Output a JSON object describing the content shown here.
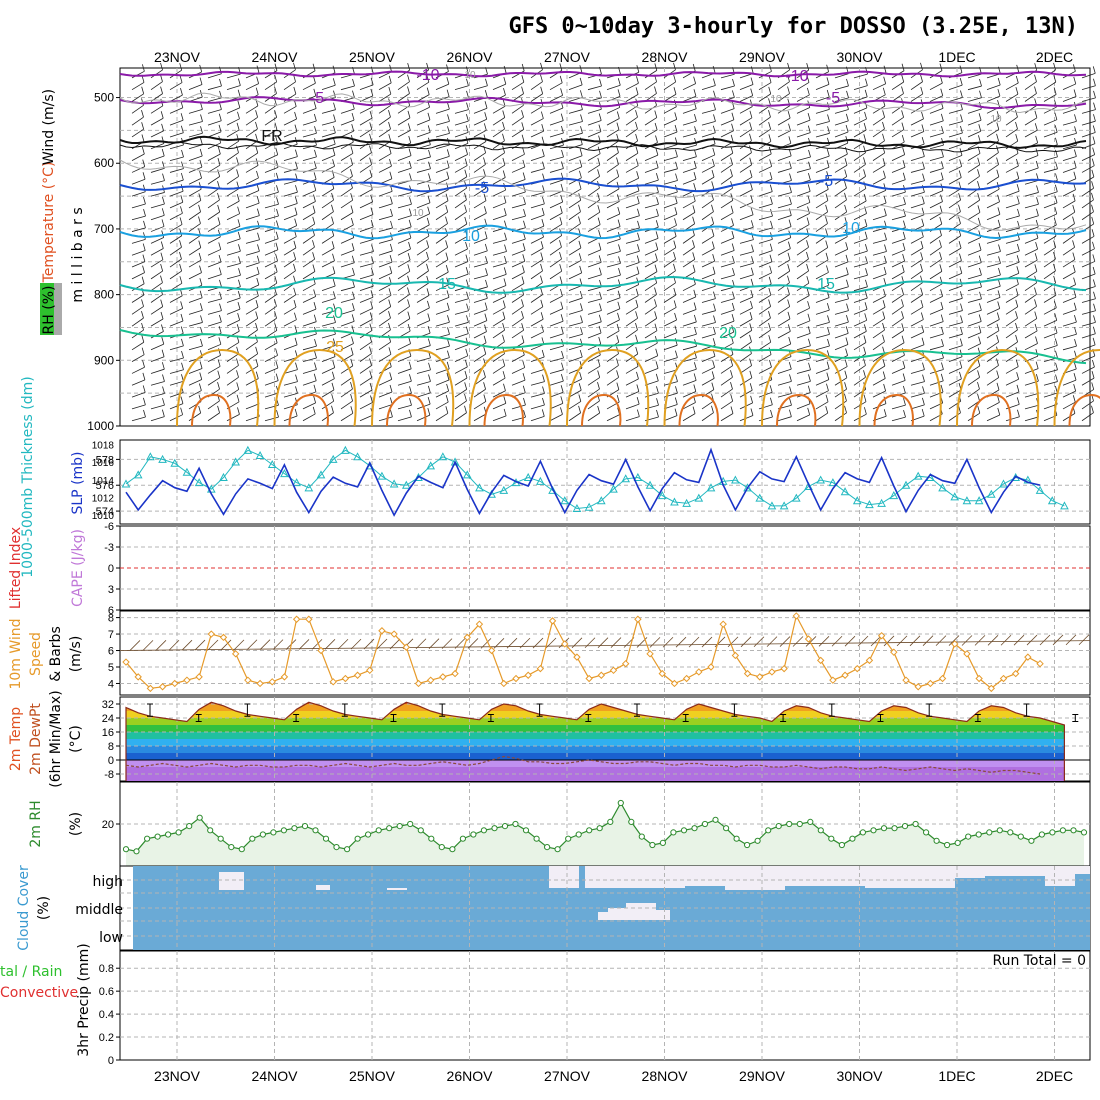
{
  "title": "GFS 0~10day 3-hourly for DOSSO (3.25E, 13N)",
  "dates": [
    "23NOV",
    "24NOV",
    "25NOV",
    "26NOV",
    "27NOV",
    "28NOV",
    "29NOV",
    "30NOV",
    "1DEC",
    "2DEC"
  ],
  "colors": {
    "grid": "#b4b4b4",
    "thickness": "#22b8c0",
    "slp": "#1a34c8",
    "wind": "#e69a2a",
    "rh": "#2e8b2e",
    "cloud": "#6aaad6",
    "cloud_clear": "#f2eef6",
    "li_zero": "#e03030",
    "temp_line": "#8b2a1a"
  },
  "panels": {
    "upper_air": {
      "ylabel_wind": "Wind (m/s)",
      "ylabel_temp": "Temperature (°C)",
      "ylabel_rh": "RH (%)",
      "ylabel_unit": "m i l l i b a r s",
      "y_ticks": [
        "500",
        "600",
        "700",
        "800",
        "900",
        "1000"
      ],
      "contour_labels": [
        {
          "text": "-10",
          "color": "#8a1aa8"
        },
        {
          "text": "-10",
          "color": "#8a1aa8"
        },
        {
          "text": "-5",
          "color": "#8a1aa8"
        },
        {
          "text": "-5",
          "color": "#8a1aa8"
        },
        {
          "text": "FR",
          "color": "#111111"
        },
        {
          "text": "-5",
          "color": "#1a4fd0"
        },
        {
          "text": "-5",
          "color": "#1a4fd0"
        },
        {
          "text": "10",
          "color": "#1aa0e0"
        },
        {
          "text": "10",
          "color": "#1aa0e0"
        },
        {
          "text": "15",
          "color": "#18b8b0"
        },
        {
          "text": "15",
          "color": "#18b8b0"
        },
        {
          "text": "20",
          "color": "#18c090"
        },
        {
          "text": "20",
          "color": "#18c090"
        },
        {
          "text": "25",
          "color": "#e0a020"
        },
        {
          "text": "10",
          "color": "#999999"
        },
        {
          "text": "10",
          "color": "#999999"
        },
        {
          "text": "10",
          "color": "#999999"
        },
        {
          "text": "10",
          "color": "#999999"
        }
      ]
    },
    "thickness_slp": {
      "ylabel_left": "1000-500mb Thickness (dm)",
      "ylabel_right": "SLP (mb)",
      "y_left_ticks": [
        "578",
        "576",
        "574"
      ],
      "y_right_ticks": [
        "1018",
        "1016",
        "1014",
        "1012",
        "1010"
      ]
    },
    "lifted": {
      "ylabel_left": "Lifted Index",
      "ylabel_right": "CAPE (J/kg)",
      "y_ticks": [
        "-6",
        "-3",
        "0",
        "3",
        "6"
      ]
    },
    "wind10m": {
      "ylabel_a": "10m Wind",
      "ylabel_b": "Speed",
      "ylabel_c": "& Barbs",
      "unit": "(m/s)",
      "y_ticks": [
        "8",
        "7",
        "6",
        "5",
        "4"
      ]
    },
    "temp2m": {
      "ylabel_a": "2m Temp",
      "ylabel_b": "2m DewPt",
      "ylabel_c": "(6hr Min/Max)",
      "unit": "(°C)",
      "y_ticks": [
        "32",
        "24",
        "16",
        "8",
        "0",
        "-8"
      ]
    },
    "rh2m": {
      "ylabel": "2m RH",
      "unit": "(%)",
      "y_ticks": [
        "20"
      ]
    },
    "cloud": {
      "ylabel": "Cloud Cover",
      "unit": "(%)",
      "levels": [
        "high",
        "middle",
        "low"
      ]
    },
    "precip": {
      "ylabel_a": "tal / Rain",
      "ylabel_b": "Convective",
      "ylabel_c": "3hr Precip (mm)",
      "y_ticks": [
        "0.8",
        "0.6",
        "0.4",
        "0.2",
        "0"
      ],
      "run_total": "Run Total = 0"
    }
  },
  "chart_data": [
    {
      "type": "line",
      "panel": "1000-500mb Thickness (dm)",
      "x_step_hours": 3,
      "ylim": [
        573,
        579.5
      ],
      "values": [
        576.1,
        576.8,
        578.2,
        578.0,
        577.7,
        577.0,
        576.2,
        575.7,
        576.6,
        577.8,
        578.7,
        578.3,
        577.6,
        576.9,
        576.2,
        575.8,
        576.8,
        578.0,
        578.7,
        578.2,
        577.5,
        576.7,
        576.1,
        576.0,
        576.6,
        577.5,
        578.2,
        577.8,
        576.8,
        575.8,
        575.3,
        575.6,
        576.2,
        576.6,
        576.3,
        575.6,
        574.8,
        574.2,
        574.3,
        574.8,
        575.7,
        576.5,
        576.6,
        576.0,
        575.2,
        574.7,
        574.6,
        575.0,
        575.8,
        576.3,
        576.4,
        575.8,
        575.0,
        574.4,
        574.4,
        575.0,
        575.9,
        576.4,
        576.2,
        575.5,
        574.8,
        574.5,
        574.6,
        575.2,
        576.0,
        576.7,
        576.6,
        575.8,
        575.1,
        574.8,
        574.8,
        575.3,
        576.1,
        576.6,
        576.4,
        575.6,
        574.8,
        574.4
      ]
    },
    {
      "type": "line",
      "panel": "SLP (mb)",
      "x_step_hours": 3,
      "ylim": [
        1009,
        1018.5
      ],
      "values": [
        1012.6,
        1010.6,
        1012.3,
        1013.9,
        1013.1,
        1012.7,
        1015.3,
        1012.4,
        1010.1,
        1012.4,
        1014.1,
        1013.6,
        1013.0,
        1015.7,
        1012.6,
        1010.3,
        1012.7,
        1014.3,
        1013.6,
        1013.2,
        1015.9,
        1012.8,
        1010.0,
        1012.5,
        1014.4,
        1013.7,
        1013.1,
        1016.0,
        1012.9,
        1010.2,
        1012.6,
        1014.5,
        1013.8,
        1013.3,
        1016.1,
        1013.0,
        1010.3,
        1012.8,
        1014.6,
        1013.9,
        1013.5,
        1016.3,
        1013.2,
        1010.5,
        1013.0,
        1014.8,
        1014.0,
        1013.7,
        1017.4,
        1013.4,
        1010.6,
        1013.1,
        1014.9,
        1014.1,
        1013.8,
        1016.6,
        1013.5,
        1010.6,
        1013.0,
        1014.8,
        1014.1,
        1013.7,
        1016.5,
        1013.3,
        1010.4,
        1012.8,
        1014.6,
        1013.9,
        1013.6,
        1016.3,
        1013.1,
        1010.3,
        1012.6,
        1014.4,
        1013.7,
        1013.4
      ]
    },
    {
      "type": "line",
      "panel": "10m Wind Speed (m/s)",
      "x_step_hours": 3,
      "ylim": [
        3.3,
        8.4
      ],
      "values": [
        5.3,
        4.4,
        3.7,
        3.8,
        4.0,
        4.2,
        4.4,
        7.0,
        6.8,
        5.8,
        4.2,
        4.0,
        4.1,
        4.4,
        7.9,
        7.9,
        6.0,
        4.1,
        4.3,
        4.5,
        4.8,
        7.2,
        7.0,
        6.2,
        4.0,
        4.2,
        4.4,
        4.6,
        6.8,
        7.6,
        6.0,
        4.0,
        4.3,
        4.5,
        4.9,
        7.8,
        6.4,
        5.6,
        4.3,
        4.5,
        4.8,
        5.2,
        7.9,
        5.8,
        4.6,
        4.0,
        4.3,
        4.7,
        5.0,
        7.6,
        5.7,
        4.6,
        4.4,
        4.7,
        4.9,
        8.1,
        6.7,
        5.4,
        4.2,
        4.5,
        4.9,
        5.4,
        6.9,
        5.9,
        4.2,
        3.8,
        4.0,
        4.3,
        6.4,
        5.8,
        4.3,
        3.7,
        4.3,
        4.6,
        5.6,
        5.2
      ]
    },
    {
      "type": "area",
      "panel": "2m Temp (°C)",
      "x_step_hours": 3,
      "ylim": [
        -12,
        36
      ],
      "values": [
        30,
        27,
        25,
        24,
        23,
        22,
        29,
        33,
        31,
        28,
        26,
        25,
        24,
        23,
        29,
        33,
        31,
        28,
        26,
        25,
        24,
        23,
        29,
        33,
        31,
        28,
        26,
        25,
        24,
        23,
        29,
        32,
        31,
        28,
        26,
        25,
        24,
        23,
        29,
        32,
        30,
        28,
        26,
        25,
        24,
        23,
        29,
        32,
        30,
        28,
        26,
        25,
        24,
        22,
        28,
        31,
        30,
        27,
        25,
        24,
        23,
        22,
        28,
        31,
        30,
        27,
        25,
        24,
        23,
        22,
        28,
        31,
        30,
        27,
        25,
        24,
        22,
        20
      ]
    },
    {
      "type": "line",
      "panel": "2m DewPt (°C)",
      "x_step_hours": 3,
      "ylim": [
        -12,
        36
      ],
      "values": [
        -3,
        -4,
        -3,
        -2,
        -3,
        -4,
        -3,
        -2,
        -3,
        -4,
        -3,
        -3,
        -4,
        -4,
        -3,
        -3,
        -4,
        -3,
        -2,
        -3,
        -4,
        -3,
        -2,
        -3,
        -3,
        -2,
        -1,
        -2,
        -3,
        -2,
        0,
        2,
        1,
        -1,
        -1,
        -2,
        -2,
        -1,
        0,
        -1,
        -2,
        -2,
        -1,
        -1,
        -2,
        -3,
        -2,
        -2,
        -3,
        -3,
        -4,
        -3,
        -3,
        -4,
        -4,
        -3,
        -4,
        -5,
        -4,
        -4,
        -5,
        -5,
        -4,
        -5,
        -6,
        -5,
        -4,
        -5,
        -6,
        -5,
        -6,
        -7,
        -6,
        -6,
        -7,
        -8
      ]
    },
    {
      "type": "area",
      "panel": "2m RH (%)",
      "x_step_hours": 3,
      "ylim": [
        0,
        40
      ],
      "values": [
        8,
        7,
        13,
        14,
        15,
        16,
        19,
        23,
        17,
        13,
        9,
        8,
        13,
        15,
        16,
        17,
        18,
        19,
        17,
        13,
        9,
        8,
        13,
        15,
        17,
        18,
        19,
        20,
        17,
        13,
        9,
        8,
        13,
        15,
        17,
        18,
        19,
        20,
        17,
        13,
        9,
        8,
        13,
        15,
        17,
        18,
        21,
        30,
        21,
        14,
        10,
        11,
        16,
        17,
        18,
        20,
        22,
        18,
        13,
        10,
        12,
        17,
        19,
        20,
        20,
        21,
        17,
        13,
        10,
        13,
        16,
        17,
        18,
        18,
        19,
        20,
        16,
        12,
        10,
        11,
        14,
        15,
        16,
        17,
        16,
        14,
        12,
        15,
        16,
        17,
        17,
        16
      ]
    },
    {
      "type": "bar",
      "panel": "3hr Precip (mm)",
      "x_step_hours": 3,
      "ylim": [
        0,
        0.95
      ],
      "values": []
    }
  ]
}
